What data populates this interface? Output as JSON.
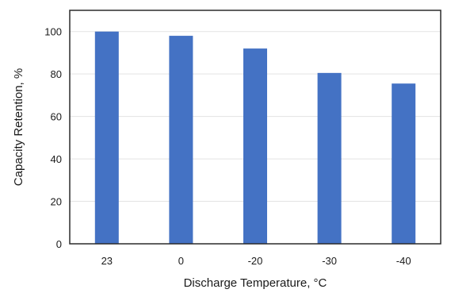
{
  "chart_data": {
    "type": "bar",
    "title": "",
    "xlabel": "Discharge Temperature, °C",
    "ylabel": "Capacity Retention, %",
    "categories": [
      "23",
      "0",
      "-20",
      "-30",
      "-40"
    ],
    "values": [
      100,
      98,
      92,
      80.5,
      75.5
    ],
    "ylim": [
      0,
      110
    ],
    "yticks": [
      "0",
      "20",
      "40",
      "60",
      "80",
      "100"
    ],
    "grid": true,
    "legend": "none",
    "colors": {
      "bar": "#4472C4",
      "grid": "#e3e3e3",
      "frame": "#2b2b2b"
    }
  }
}
